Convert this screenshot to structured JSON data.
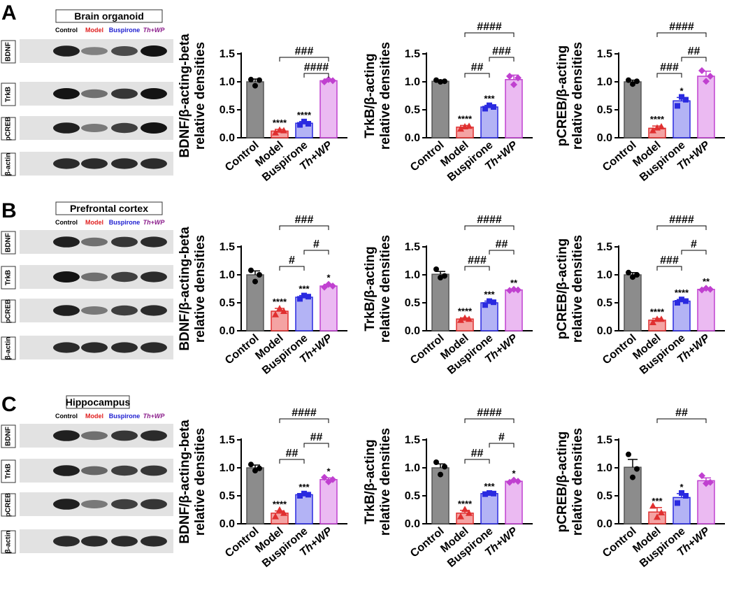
{
  "colors": {
    "Control": "#8c8c8c",
    "Model": "#f4a3a3",
    "Buspirone": "#b3b3f5",
    "Th+WP": "#ebbaf2",
    "Control_pt": "#000000",
    "Model_pt": "#e03030",
    "Buspirone_pt": "#2a2ae0",
    "Th+WP_pt": "#c040d0",
    "Control_lbl": "#000000",
    "Model_lbl": "#e02020",
    "Buspirone_lbl": "#2020d0",
    "Th+WP_lbl": "#8a1a8a"
  },
  "panels": [
    {
      "letter": "A",
      "tissue": "Brain organoid",
      "lanes": [
        "Control",
        "Model",
        "Buspirone",
        "Th+WP"
      ],
      "proteins": [
        "BDNF",
        "TrkB",
        "pCREB",
        "β-actin"
      ],
      "blot_intensity": [
        [
          0.95,
          0.45,
          0.75,
          1.0
        ],
        [
          1.0,
          0.55,
          0.85,
          1.0
        ],
        [
          0.95,
          0.5,
          0.8,
          1.0
        ],
        [
          0.9,
          0.9,
          0.9,
          0.9
        ]
      ]
    },
    {
      "letter": "B",
      "tissue": "Prefrontal cortex",
      "lanes": [
        "Control",
        "Model",
        "Buspirone",
        "Th+WP"
      ],
      "proteins": [
        "BDNF",
        "TrkB",
        "pCREB",
        "β-actin"
      ],
      "blot_intensity": [
        [
          0.95,
          0.55,
          0.85,
          0.9
        ],
        [
          1.0,
          0.55,
          0.8,
          0.9
        ],
        [
          0.95,
          0.5,
          0.8,
          0.9
        ],
        [
          0.9,
          0.9,
          0.9,
          0.9
        ]
      ]
    },
    {
      "letter": "C",
      "tissue": "Hippocampus",
      "lanes": [
        "Control",
        "Model",
        "Buspirone",
        "Th+WP"
      ],
      "proteins": [
        "BDNF",
        "TrkB",
        "pCREB",
        "β-actin"
      ],
      "blot_intensity": [
        [
          0.95,
          0.55,
          0.85,
          0.9
        ],
        [
          0.95,
          0.6,
          0.8,
          0.85
        ],
        [
          0.95,
          0.5,
          0.8,
          0.85
        ],
        [
          0.9,
          0.9,
          0.9,
          0.9
        ]
      ]
    }
  ],
  "chart_data": [
    {
      "type": "bar",
      "row": 0,
      "col": 0,
      "ylabel": [
        "BDNF/β-acting-beta",
        "relative densities"
      ],
      "categories": [
        "Control",
        "Model",
        "Buspirone",
        "Th+WP"
      ],
      "ylim": [
        0,
        1.5
      ],
      "yticks": [
        "0.0",
        "0.5",
        "1.0",
        "1.5"
      ],
      "values": [
        1.0,
        0.12,
        0.26,
        1.02
      ],
      "errors": [
        0.05,
        0.03,
        0.03,
        0.03
      ],
      "points": [
        [
          1.04,
          0.93,
          1.03
        ],
        [
          0.09,
          0.14,
          0.13
        ],
        [
          0.23,
          0.29,
          0.25
        ],
        [
          1.0,
          1.04,
          1.02
        ]
      ],
      "stars": [
        "",
        "****",
        "****",
        ""
      ],
      "brackets": [
        {
          "from": 1,
          "to": 3,
          "label": "###",
          "level": 2
        },
        {
          "from": 2,
          "to": 3,
          "label": "####",
          "level": 1
        }
      ]
    },
    {
      "type": "bar",
      "row": 0,
      "col": 1,
      "ylabel": [
        "TrkB/β-acting",
        "relative densities"
      ],
      "categories": [
        "Control",
        "Model",
        "Buspirone",
        "Th+WP"
      ],
      "ylim": [
        0,
        1.5
      ],
      "yticks": [
        "0.0",
        "0.5",
        "1.0",
        "1.5"
      ],
      "values": [
        1.01,
        0.19,
        0.55,
        1.04
      ],
      "errors": [
        0.02,
        0.03,
        0.03,
        0.08
      ],
      "points": [
        [
          1.03,
          1.0,
          1.01
        ],
        [
          0.16,
          0.2,
          0.21
        ],
        [
          0.52,
          0.58,
          0.55
        ],
        [
          1.1,
          0.95,
          1.07
        ]
      ],
      "stars": [
        "",
        "****",
        "***",
        ""
      ],
      "brackets": [
        {
          "from": 1,
          "to": 3,
          "label": "####",
          "level": 3
        },
        {
          "from": 2,
          "to": 3,
          "label": "###",
          "level": 2
        },
        {
          "from": 1,
          "to": 2,
          "label": "##",
          "level": 1
        }
      ]
    },
    {
      "type": "bar",
      "row": 0,
      "col": 2,
      "ylabel": [
        "pCREB/β-acting",
        "relative densities"
      ],
      "categories": [
        "Control",
        "Model",
        "Buspirone",
        "Th+WP"
      ],
      "ylim": [
        0,
        1.5
      ],
      "yticks": [
        "0.0",
        "0.5",
        "1.0",
        "1.5"
      ],
      "values": [
        1.0,
        0.17,
        0.66,
        1.1
      ],
      "errors": [
        0.03,
        0.04,
        0.06,
        0.09
      ],
      "points": [
        [
          1.03,
          0.96,
          1.01
        ],
        [
          0.13,
          0.18,
          0.2
        ],
        [
          0.57,
          0.73,
          0.68
        ],
        [
          1.2,
          1.01,
          1.1
        ]
      ],
      "stars": [
        "",
        "****",
        "*",
        ""
      ],
      "brackets": [
        {
          "from": 1,
          "to": 3,
          "label": "####",
          "level": 3
        },
        {
          "from": 2,
          "to": 3,
          "label": "##",
          "level": 2
        },
        {
          "from": 1,
          "to": 2,
          "label": "###",
          "level": 1
        }
      ]
    },
    {
      "type": "bar",
      "row": 1,
      "col": 0,
      "ylabel": [
        "BDNF/β-acting-beta",
        "relative densities"
      ],
      "categories": [
        "Control",
        "Model",
        "Buspirone",
        "Th+WP"
      ],
      "ylim": [
        0,
        1.5
      ],
      "yticks": [
        "0.0",
        "0.5",
        "1.0",
        "1.5"
      ],
      "values": [
        1.0,
        0.35,
        0.6,
        0.8
      ],
      "errors": [
        0.07,
        0.05,
        0.03,
        0.03
      ],
      "points": [
        [
          1.08,
          0.88,
          1.0
        ],
        [
          0.29,
          0.4,
          0.35
        ],
        [
          0.57,
          0.63,
          0.61
        ],
        [
          0.78,
          0.83,
          0.8
        ]
      ],
      "stars": [
        "",
        "****",
        "***",
        "*"
      ],
      "brackets": [
        {
          "from": 1,
          "to": 3,
          "label": "###",
          "level": 3
        },
        {
          "from": 2,
          "to": 3,
          "label": "#",
          "level": 2
        },
        {
          "from": 1,
          "to": 2,
          "label": "#",
          "level": 1
        }
      ]
    },
    {
      "type": "bar",
      "row": 1,
      "col": 1,
      "ylabel": [
        "TrkB/β-acting",
        "relative densities"
      ],
      "categories": [
        "Control",
        "Model",
        "Buspirone",
        "Th+WP"
      ],
      "ylim": [
        0,
        1.5
      ],
      "yticks": [
        "0.0",
        "0.5",
        "1.0",
        "1.5"
      ],
      "values": [
        1.01,
        0.21,
        0.5,
        0.73
      ],
      "errors": [
        0.05,
        0.02,
        0.03,
        0.01
      ],
      "points": [
        [
          1.1,
          0.95,
          0.98
        ],
        [
          0.19,
          0.23,
          0.21
        ],
        [
          0.46,
          0.53,
          0.51
        ],
        [
          0.72,
          0.74,
          0.73
        ]
      ],
      "stars": [
        "",
        "****",
        "***",
        "**"
      ],
      "brackets": [
        {
          "from": 1,
          "to": 3,
          "label": "####",
          "level": 3
        },
        {
          "from": 2,
          "to": 3,
          "label": "##",
          "level": 2
        },
        {
          "from": 1,
          "to": 2,
          "label": "###",
          "level": 1
        }
      ]
    },
    {
      "type": "bar",
      "row": 1,
      "col": 2,
      "ylabel": [
        "pCREB/β-acting",
        "relative densities"
      ],
      "categories": [
        "Control",
        "Model",
        "Buspirone",
        "Th+WP"
      ],
      "ylim": [
        0,
        1.5
      ],
      "yticks": [
        "0.0",
        "0.5",
        "1.0",
        "1.5"
      ],
      "values": [
        1.0,
        0.19,
        0.53,
        0.74
      ],
      "errors": [
        0.04,
        0.03,
        0.03,
        0.02
      ],
      "points": [
        [
          1.04,
          0.96,
          1.0
        ],
        [
          0.15,
          0.21,
          0.21
        ],
        [
          0.5,
          0.56,
          0.53
        ],
        [
          0.73,
          0.76,
          0.74
        ]
      ],
      "stars": [
        "",
        "****",
        "****",
        "**"
      ],
      "brackets": [
        {
          "from": 1,
          "to": 3,
          "label": "####",
          "level": 3
        },
        {
          "from": 2,
          "to": 3,
          "label": "#",
          "level": 2
        },
        {
          "from": 1,
          "to": 2,
          "label": "###",
          "level": 1
        }
      ]
    },
    {
      "type": "bar",
      "row": 2,
      "col": 0,
      "ylabel": [
        "BDNF/β-acting-beta",
        "relative densities"
      ],
      "categories": [
        "Control",
        "Model",
        "Buspirone",
        "Th+WP"
      ],
      "ylim": [
        0,
        1.5
      ],
      "yticks": [
        "0.0",
        "0.5",
        "1.0",
        "1.5"
      ],
      "values": [
        1.0,
        0.19,
        0.52,
        0.79
      ],
      "errors": [
        0.05,
        0.04,
        0.02,
        0.03
      ],
      "points": [
        [
          1.06,
          0.95,
          0.99
        ],
        [
          0.13,
          0.25,
          0.19
        ],
        [
          0.5,
          0.54,
          0.52
        ],
        [
          0.83,
          0.75,
          0.79
        ]
      ],
      "stars": [
        "",
        "****",
        "***",
        "*"
      ],
      "brackets": [
        {
          "from": 1,
          "to": 3,
          "label": "####",
          "level": 3
        },
        {
          "from": 2,
          "to": 3,
          "label": "##",
          "level": 2
        },
        {
          "from": 1,
          "to": 2,
          "label": "##",
          "level": 1
        }
      ]
    },
    {
      "type": "bar",
      "row": 2,
      "col": 1,
      "ylabel": [
        "TrkB/β-acting",
        "relative densities"
      ],
      "categories": [
        "Control",
        "Model",
        "Buspirone",
        "Th+WP"
      ],
      "ylim": [
        0,
        1.5
      ],
      "yticks": [
        "0.0",
        "0.5",
        "1.0",
        "1.5"
      ],
      "values": [
        1.0,
        0.19,
        0.54,
        0.76
      ],
      "errors": [
        0.07,
        0.05,
        0.01,
        0.02
      ],
      "points": [
        [
          1.1,
          0.88,
          1.02
        ],
        [
          0.13,
          0.26,
          0.19
        ],
        [
          0.53,
          0.55,
          0.54
        ],
        [
          0.74,
          0.78,
          0.76
        ]
      ],
      "stars": [
        "",
        "****",
        "***",
        "*"
      ],
      "brackets": [
        {
          "from": 1,
          "to": 3,
          "label": "####",
          "level": 3
        },
        {
          "from": 2,
          "to": 3,
          "label": "#",
          "level": 2
        },
        {
          "from": 1,
          "to": 2,
          "label": "##",
          "level": 1
        }
      ]
    },
    {
      "type": "bar",
      "row": 2,
      "col": 2,
      "ylabel": [
        "pCREB/β-acting",
        "relative densities"
      ],
      "categories": [
        "Control",
        "Model",
        "Buspirone",
        "Th+WP"
      ],
      "ylim": [
        0,
        1.5
      ],
      "yticks": [
        "0.0",
        "0.5",
        "1.0",
        "1.5"
      ],
      "values": [
        1.01,
        0.21,
        0.47,
        0.77
      ],
      "errors": [
        0.14,
        0.08,
        0.07,
        0.05
      ],
      "points": [
        [
          1.24,
          0.83,
          0.98
        ],
        [
          0.32,
          0.12,
          0.2
        ],
        [
          0.37,
          0.55,
          0.5
        ],
        [
          0.86,
          0.72,
          0.74
        ]
      ],
      "stars": [
        "",
        "***",
        "*",
        ""
      ],
      "brackets": [
        {
          "from": 1,
          "to": 3,
          "label": "##",
          "level": 3
        }
      ]
    }
  ]
}
